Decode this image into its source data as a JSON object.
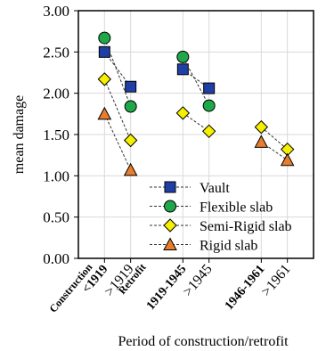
{
  "chart_data": {
    "type": "scatter",
    "title": "",
    "xlabel": "Period of construction/retrofit",
    "ylabel": "mean damage",
    "ylim": [
      0,
      3
    ],
    "grid": true,
    "yticks": [
      {
        "value": 0,
        "label": "0.00"
      },
      {
        "value": 0.5,
        "label": "0.50"
      },
      {
        "value": 1,
        "label": "1.00"
      },
      {
        "value": 1.5,
        "label": "1.50"
      },
      {
        "value": 2,
        "label": "2.00"
      },
      {
        "value": 2.5,
        "label": "2.50"
      },
      {
        "value": 3,
        "label": "3.00"
      }
    ],
    "categories": [
      {
        "label": "<1919",
        "bold": true
      },
      {
        "label": ">1919",
        "bold": false
      },
      {
        "label": "1919-1945",
        "bold": true
      },
      {
        "label": ">1945",
        "bold": false
      },
      {
        "label": "1946-1961",
        "bold": true
      },
      {
        "label": ">1961",
        "bold": false
      }
    ],
    "category_slots": [
      1,
      2,
      4,
      5,
      7,
      8
    ],
    "row_labels": [
      "Construction",
      "Retrofit"
    ],
    "legend_position": "bottom-right",
    "series": [
      {
        "name": "Vault",
        "marker": "square",
        "color": "#1f3fa6",
        "values": [
          2.5,
          2.08,
          2.29,
          2.06,
          null,
          null
        ]
      },
      {
        "name": "Flexible slab",
        "marker": "circle",
        "color": "#1fa84a",
        "values": [
          2.67,
          1.84,
          2.44,
          1.85,
          null,
          null
        ]
      },
      {
        "name": "Semi-Rigid slab",
        "marker": "diamond",
        "color": "#f5f000",
        "values": [
          2.17,
          1.43,
          1.76,
          1.54,
          1.59,
          1.32
        ]
      },
      {
        "name": "Rigid slab",
        "marker": "triangle",
        "color": "#e87d2e",
        "values": [
          1.75,
          1.07,
          null,
          null,
          1.41,
          1.19
        ]
      }
    ]
  }
}
